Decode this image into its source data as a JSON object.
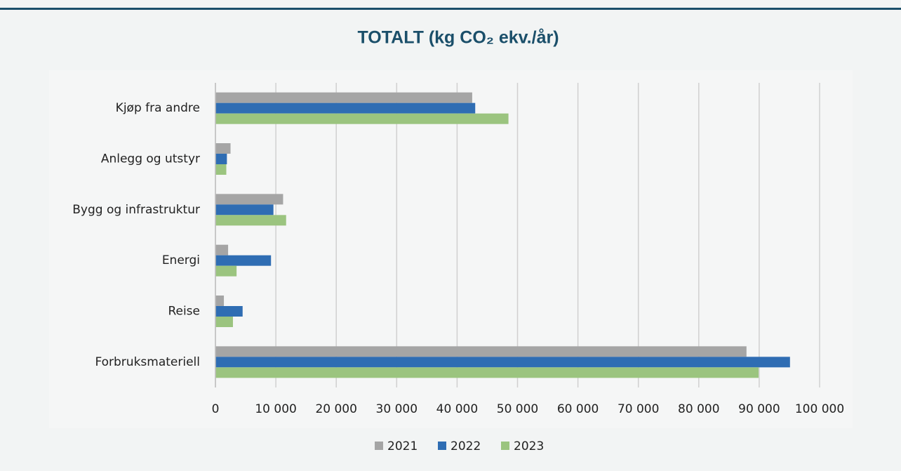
{
  "chart_data": {
    "type": "hbar",
    "title": "TOTALT (kg CO₂ ekv./år)",
    "categories": [
      "Kjøp fra andre",
      "Anlegg og utstyr",
      "Bygg og infrastruktur",
      "Energi",
      "Reise",
      "Forbruksmateriell"
    ],
    "series": [
      {
        "name": "2021",
        "color": "#a5a5a5",
        "values": [
          42500,
          2500,
          11200,
          2100,
          1400,
          87900
        ]
      },
      {
        "name": "2022",
        "color": "#2f6db3",
        "values": [
          43000,
          1900,
          9600,
          9200,
          4500,
          95100
        ]
      },
      {
        "name": "2023",
        "color": "#9bc47f",
        "values": [
          48500,
          1800,
          11700,
          3500,
          2900,
          89900
        ]
      }
    ],
    "xlim": [
      0,
      100000
    ],
    "xticks": [
      0,
      {
        "value": 10000,
        "label": "10 000"
      },
      {
        "value": 20000,
        "label": "20 000"
      },
      {
        "value": 30000,
        "label": "30 000"
      },
      {
        "value": 40000,
        "label": "40 000"
      },
      {
        "value": 50000,
        "label": "50 000"
      },
      {
        "value": 60000,
        "label": "60 000"
      },
      {
        "value": 70000,
        "label": "70 000"
      },
      {
        "value": 80000,
        "label": "80 000"
      },
      {
        "value": 90000,
        "label": "90 000"
      },
      {
        "value": 100000,
        "label": "100 000"
      }
    ],
    "grid": true,
    "legend": "bottom"
  }
}
